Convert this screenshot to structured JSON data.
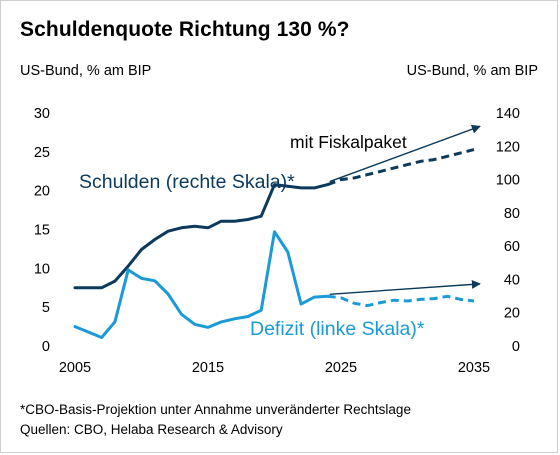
{
  "title": "Schuldenquote Richtung 130 %?",
  "unit_left": "US-Bund, % am BIP",
  "unit_right": "US-Bund, % am BIP",
  "footnote": "*CBO-Basis-Projektion unter Annahme unveränderter Rechtslage",
  "source": "Quellen: CBO, Helaba Research & Advisory",
  "colors": {
    "debt": "#0b3a5c",
    "deficit": "#1a9ad6",
    "arrow": "#0b3a5c"
  },
  "chart_data": {
    "type": "line",
    "title": "Schuldenquote Richtung 130 %?",
    "x_ticks": [
      "2005",
      "2015",
      "2025",
      "2035"
    ],
    "xlim": [
      2005,
      2035
    ],
    "y_left": {
      "label": "US-Bund, % am BIP",
      "lim": [
        0,
        30
      ],
      "ticks": [
        "0",
        "5",
        "10",
        "15",
        "20",
        "25",
        "30"
      ]
    },
    "y_right": {
      "label": "US-Bund, % am BIP",
      "lim": [
        0,
        140
      ],
      "ticks": [
        "0",
        "20",
        "40",
        "60",
        "80",
        "100",
        "120",
        "140"
      ]
    },
    "grid": false,
    "series": [
      {
        "name": "Schulden (rechte Skala)*",
        "axis": "right",
        "historical": {
          "x": [
            2005,
            2006,
            2007,
            2008,
            2009,
            2010,
            2011,
            2012,
            2013,
            2014,
            2015,
            2016,
            2017,
            2018,
            2019,
            2020,
            2021,
            2022,
            2023,
            2024
          ],
          "y": [
            35,
            35,
            35,
            39,
            48,
            58,
            64,
            69,
            71,
            72,
            71,
            75,
            75,
            76,
            78,
            97,
            96,
            95,
            95,
            97
          ]
        },
        "projection": {
          "x": [
            2024,
            2025,
            2026,
            2027,
            2028,
            2029,
            2030,
            2031,
            2032,
            2033,
            2034,
            2035
          ],
          "y": [
            97,
            100,
            101,
            103,
            105,
            107,
            109,
            111,
            112,
            114,
            116,
            118
          ]
        }
      },
      {
        "name": "Defizit (linke Skala)*",
        "axis": "left",
        "historical": {
          "x": [
            2005,
            2006,
            2007,
            2008,
            2009,
            2010,
            2011,
            2012,
            2013,
            2014,
            2015,
            2016,
            2017,
            2018,
            2019,
            2020,
            2021,
            2022,
            2023,
            2024
          ],
          "y": [
            2.5,
            1.8,
            1.1,
            3.1,
            9.8,
            8.7,
            8.4,
            6.7,
            4.1,
            2.8,
            2.4,
            3.1,
            3.5,
            3.8,
            4.6,
            14.7,
            12.1,
            5.4,
            6.3,
            6.4
          ]
        },
        "projection": {
          "x": [
            2024,
            2025,
            2026,
            2027,
            2028,
            2029,
            2030,
            2031,
            2032,
            2033,
            2034,
            2035
          ],
          "y": [
            6.4,
            6.2,
            5.5,
            5.2,
            5.6,
            5.9,
            5.8,
            6.0,
            6.1,
            6.4,
            6.0,
            5.8
          ]
        }
      }
    ],
    "annotations": [
      {
        "text": "mit Fiskalpaket"
      },
      {
        "text": "Schulden (rechte Skala)*"
      },
      {
        "text": "Defizit (linke Skala)*"
      }
    ]
  }
}
